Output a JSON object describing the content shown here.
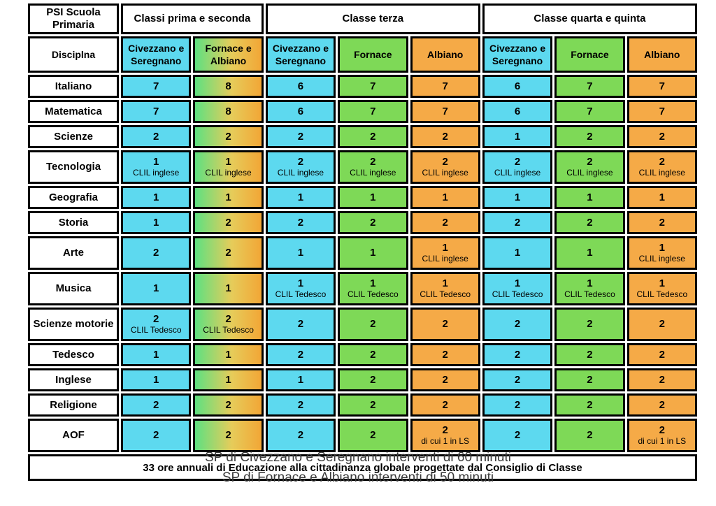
{
  "table": {
    "corner_title": "PSI Scuola Primaria",
    "discipline_header": "Disciplna",
    "groups": [
      {
        "label": "Classi prima e seconda",
        "cols": [
          {
            "label": "Civezzano e Seregnano",
            "color": "cyan"
          },
          {
            "label": "Fornace e Albiano",
            "color": "gradient"
          }
        ]
      },
      {
        "label": "Classe terza",
        "cols": [
          {
            "label": "Civezzano e Seregnano",
            "color": "cyan"
          },
          {
            "label": "Fornace",
            "color": "green"
          },
          {
            "label": "Albiano",
            "color": "orange"
          }
        ]
      },
      {
        "label": "Classe quarta e quinta",
        "cols": [
          {
            "label": "Civezzano e Seregnano",
            "color": "cyan"
          },
          {
            "label": "Fornace",
            "color": "green"
          },
          {
            "label": "Albiano",
            "color": "orange"
          }
        ]
      }
    ],
    "column_colors": [
      "cyan",
      "gradient",
      "cyan",
      "green",
      "orange",
      "cyan",
      "green",
      "orange"
    ],
    "rows": [
      {
        "label": "Italiano",
        "cells": [
          {
            "v": "7"
          },
          {
            "v": "8"
          },
          {
            "v": "6"
          },
          {
            "v": "7"
          },
          {
            "v": "7"
          },
          {
            "v": "6"
          },
          {
            "v": "7"
          },
          {
            "v": "7"
          }
        ]
      },
      {
        "label": "Matematica",
        "cells": [
          {
            "v": "7"
          },
          {
            "v": "8"
          },
          {
            "v": "6"
          },
          {
            "v": "7"
          },
          {
            "v": "7"
          },
          {
            "v": "6"
          },
          {
            "v": "7"
          },
          {
            "v": "7"
          }
        ]
      },
      {
        "label": "Scienze",
        "cells": [
          {
            "v": "2"
          },
          {
            "v": "2"
          },
          {
            "v": "2"
          },
          {
            "v": "2"
          },
          {
            "v": "2"
          },
          {
            "v": "1"
          },
          {
            "v": "2"
          },
          {
            "v": "2"
          }
        ]
      },
      {
        "label": "Tecnologia",
        "cells": [
          {
            "v": "1",
            "sub": "CLIL inglese"
          },
          {
            "v": "1",
            "sub": "CLIL inglese"
          },
          {
            "v": "2",
            "sub": "CLIL inglese"
          },
          {
            "v": "2",
            "sub": "CLIL inglese"
          },
          {
            "v": "2",
            "sub": "CLIL inglese"
          },
          {
            "v": "2",
            "sub": "CLIL inglese"
          },
          {
            "v": "2",
            "sub": "CLIL inglese"
          },
          {
            "v": "2",
            "sub": "CLIL inglese"
          }
        ]
      },
      {
        "label": "Geografia",
        "cells": [
          {
            "v": "1"
          },
          {
            "v": "1"
          },
          {
            "v": "1"
          },
          {
            "v": "1"
          },
          {
            "v": "1"
          },
          {
            "v": "1"
          },
          {
            "v": "1"
          },
          {
            "v": "1"
          }
        ]
      },
      {
        "label": "Storia",
        "cells": [
          {
            "v": "1"
          },
          {
            "v": "2"
          },
          {
            "v": "2"
          },
          {
            "v": "2"
          },
          {
            "v": "2"
          },
          {
            "v": "2"
          },
          {
            "v": "2"
          },
          {
            "v": "2"
          }
        ]
      },
      {
        "label": "Arte",
        "cells": [
          {
            "v": "2"
          },
          {
            "v": "2"
          },
          {
            "v": "1"
          },
          {
            "v": "1"
          },
          {
            "v": "1",
            "sub": "CLIL inglese"
          },
          {
            "v": "1"
          },
          {
            "v": "1"
          },
          {
            "v": "1",
            "sub": "CLIL inglese"
          }
        ]
      },
      {
        "label": "Musica",
        "cells": [
          {
            "v": "1"
          },
          {
            "v": "1"
          },
          {
            "v": "1",
            "sub": "CLIL Tedesco"
          },
          {
            "v": "1",
            "sub": "CLIL Tedesco"
          },
          {
            "v": "1",
            "sub": "CLIL Tedesco"
          },
          {
            "v": "1",
            "sub": "CLIL Tedesco"
          },
          {
            "v": "1",
            "sub": "CLIL Tedesco"
          },
          {
            "v": "1",
            "sub": "CLIL Tedesco"
          }
        ]
      },
      {
        "label": "Scienze motorie",
        "cells": [
          {
            "v": "2",
            "sub": "CLIL Tedesco"
          },
          {
            "v": "2",
            "sub": "CLIL Tedesco"
          },
          {
            "v": "2"
          },
          {
            "v": "2"
          },
          {
            "v": "2"
          },
          {
            "v": "2"
          },
          {
            "v": "2"
          },
          {
            "v": "2"
          }
        ]
      },
      {
        "label": "Tedesco",
        "cells": [
          {
            "v": "1"
          },
          {
            "v": "1"
          },
          {
            "v": "2"
          },
          {
            "v": "2"
          },
          {
            "v": "2"
          },
          {
            "v": "2"
          },
          {
            "v": "2"
          },
          {
            "v": "2"
          }
        ]
      },
      {
        "label": "Inglese",
        "cells": [
          {
            "v": "1"
          },
          {
            "v": "1"
          },
          {
            "v": "1"
          },
          {
            "v": "2"
          },
          {
            "v": "2"
          },
          {
            "v": "2"
          },
          {
            "v": "2"
          },
          {
            "v": "2"
          }
        ]
      },
      {
        "label": "Religione",
        "cells": [
          {
            "v": "2"
          },
          {
            "v": "2"
          },
          {
            "v": "2"
          },
          {
            "v": "2"
          },
          {
            "v": "2"
          },
          {
            "v": "2"
          },
          {
            "v": "2"
          },
          {
            "v": "2"
          }
        ]
      },
      {
        "label": "AOF",
        "cells": [
          {
            "v": "2"
          },
          {
            "v": "2"
          },
          {
            "v": "2"
          },
          {
            "v": "2"
          },
          {
            "v": "2",
            "sub": "di cui 1 in LS"
          },
          {
            "v": "2"
          },
          {
            "v": "2"
          },
          {
            "v": "2",
            "sub": "di cui 1 in LS"
          }
        ]
      }
    ],
    "footer": "33 ore annuali di Educazione alla cittadinanza globale progettate dal Consiglio di Classe"
  },
  "captions": {
    "line1": "SP di Civezzano e Seregnano interventi di 60 minuti",
    "line2": "SP di Fornace e Albiano interventi di 50 minuti"
  },
  "colors": {
    "cyan": "#5DD9EF",
    "green": "#7ED957",
    "orange": "#F5AA47",
    "gradient_start": "#5EE081",
    "gradient_mid": "#E6CC5A",
    "gradient_end": "#F2A636",
    "border": "#000000"
  }
}
